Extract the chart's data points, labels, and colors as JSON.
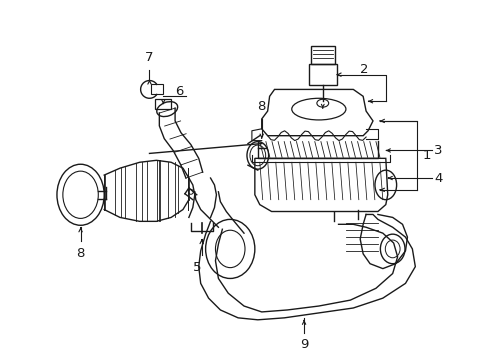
{
  "background_color": "#ffffff",
  "line_color": "#1a1a1a",
  "lw": 1.0,
  "fig_width": 4.9,
  "fig_height": 3.6,
  "dpi": 100,
  "label_fontsize": 8.5
}
